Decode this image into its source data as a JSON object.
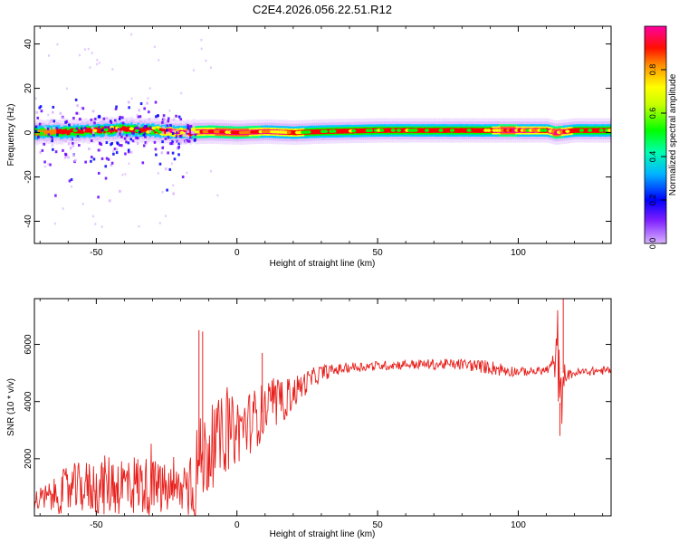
{
  "title": "C2E4.2026.056.22.51.R12",
  "chart_data": [
    {
      "type": "heatmap",
      "name": "spectrogram",
      "xlabel": "Height of straight line (km)",
      "ylabel": "Frequency (Hz)",
      "xlim": [
        -72,
        133
      ],
      "ylim": [
        -50,
        48
      ],
      "xticks": [
        -50,
        0,
        50,
        100
      ],
      "yticks": [
        -40,
        -20,
        0,
        20,
        40
      ],
      "colorbar": {
        "label": "Normalized spectral amplitude",
        "range": [
          0,
          1
        ],
        "ticks": [
          0.0,
          0.2,
          0.4,
          0.6,
          0.8
        ],
        "tick_labels": [
          "0.0",
          "0.2",
          "0.4",
          "0.6",
          "0.8"
        ],
        "colormap": [
          "#d9b3ff",
          "#6a00ff",
          "#0000ff",
          "#00c8ff",
          "#00ff80",
          "#00ff00",
          "#ffff00",
          "#ff8000",
          "#ff0000",
          "#ff0090"
        ]
      },
      "ridge": {
        "description_values": "dominant frequency near 0 Hz across full height range",
        "x": [
          -72,
          -60,
          -50,
          -40,
          -30,
          -20,
          -10,
          0,
          10,
          20,
          30,
          50,
          70,
          90,
          95,
          100,
          110,
          113,
          120,
          133
        ],
        "freq": [
          0,
          0.5,
          1,
          1.5,
          1,
          0,
          0.5,
          0,
          0.5,
          0,
          0.5,
          1,
          1,
          1,
          1,
          1,
          1,
          0,
          1,
          1
        ],
        "amplitude": [
          0.45,
          0.5,
          0.5,
          0.55,
          0.55,
          0.7,
          0.75,
          0.8,
          0.7,
          0.6,
          0.5,
          0.5,
          0.5,
          0.55,
          0.9,
          0.7,
          0.6,
          0.85,
          0.5,
          0.5
        ]
      },
      "scatter_noise_x_range": [
        -72,
        -15
      ]
    },
    {
      "type": "line",
      "name": "snr",
      "xlabel": "Height of straight line (km)",
      "ylabel": "SNR (10 * v/v)",
      "xlim": [
        -72,
        133
      ],
      "ylim": [
        0,
        7600
      ],
      "xticks": [
        -50,
        0,
        50,
        100
      ],
      "yticks": [
        2000,
        4000,
        6000
      ],
      "color": "#e8201c",
      "envelope": {
        "x": [
          -72,
          -65,
          -60,
          -55,
          -50,
          -45,
          -40,
          -35,
          -30,
          -25,
          -20,
          -15,
          -10,
          -5,
          0,
          5,
          10,
          15,
          20,
          25,
          30,
          35,
          40,
          50,
          60,
          70,
          80,
          90,
          95,
          100,
          105,
          110,
          113,
          114,
          115,
          116,
          117,
          120,
          125,
          133
        ],
        "mean": [
          500,
          700,
          900,
          1000,
          1000,
          1100,
          1100,
          1100,
          1000,
          900,
          900,
          1500,
          2300,
          2800,
          3000,
          3300,
          3700,
          3900,
          4300,
          4700,
          5000,
          5100,
          5200,
          5250,
          5300,
          5300,
          5300,
          5200,
          5100,
          5050,
          5050,
          5100,
          5300,
          5800,
          3500,
          5000,
          4900,
          5000,
          5050,
          5100
        ],
        "noise": [
          400,
          600,
          900,
          900,
          1000,
          1100,
          1100,
          1100,
          1000,
          900,
          800,
          1800,
          1500,
          1400,
          1200,
          1100,
          1000,
          800,
          600,
          400,
          300,
          200,
          180,
          170,
          170,
          180,
          200,
          250,
          250,
          150,
          150,
          150,
          500,
          1500,
          1500,
          600,
          200,
          150,
          150,
          150
        ]
      },
      "spikes": [
        {
          "x": -13.5,
          "y": 6500
        },
        {
          "x": -12.2,
          "y": 6450
        },
        {
          "x": 9,
          "y": 5700
        },
        {
          "x": 116,
          "y": 7600
        },
        {
          "x": 114.8,
          "y": 2800
        }
      ]
    }
  ]
}
